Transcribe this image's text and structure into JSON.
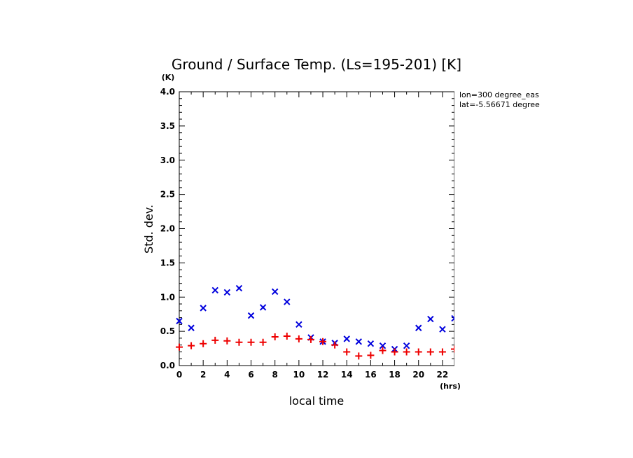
{
  "chart_data": {
    "type": "scatter",
    "title": "Ground / Surface Temp. (Ls=195-201) [K]",
    "xlabel": "local time",
    "ylabel": "Std. dev.",
    "xunit": "(hrs)",
    "yunit": "(K)",
    "xlim": [
      0,
      23
    ],
    "ylim": [
      0,
      4.0
    ],
    "xticks": [
      "0",
      "2",
      "4",
      "6",
      "8",
      "10",
      "12",
      "14",
      "16",
      "18",
      "20",
      "22"
    ],
    "yticks": [
      "0.0",
      "0.5",
      "1.0",
      "1.5",
      "2.0",
      "2.5",
      "3.0",
      "3.5",
      "4.0"
    ],
    "grid": false,
    "info_lines": [
      "lon=300 degree_eas",
      "lat=-5.56671 degree"
    ],
    "series": [
      {
        "marker": "x",
        "color": "#0000dd",
        "x": [
          0,
          1,
          2,
          3,
          4,
          5,
          6,
          7,
          8,
          9,
          10,
          11,
          12,
          13,
          14,
          15,
          16,
          17,
          18,
          19,
          20,
          21,
          22,
          23
        ],
        "y": [
          0.65,
          0.55,
          0.84,
          1.1,
          1.07,
          1.13,
          0.73,
          0.85,
          1.08,
          0.93,
          0.6,
          0.41,
          0.35,
          0.33,
          0.39,
          0.35,
          0.32,
          0.29,
          0.24,
          0.29,
          0.55,
          0.68,
          0.53,
          0.69
        ]
      },
      {
        "marker": "+",
        "color": "#ee0000",
        "x": [
          0,
          1,
          2,
          3,
          4,
          5,
          6,
          7,
          8,
          9,
          10,
          11,
          12,
          13,
          14,
          15,
          16,
          17,
          18,
          19,
          20,
          21,
          22,
          23
        ],
        "y": [
          0.27,
          0.29,
          0.32,
          0.37,
          0.36,
          0.34,
          0.34,
          0.34,
          0.42,
          0.43,
          0.39,
          0.38,
          0.35,
          0.3,
          0.2,
          0.14,
          0.15,
          0.22,
          0.2,
          0.2,
          0.2,
          0.2,
          0.2,
          0.24
        ]
      }
    ]
  }
}
